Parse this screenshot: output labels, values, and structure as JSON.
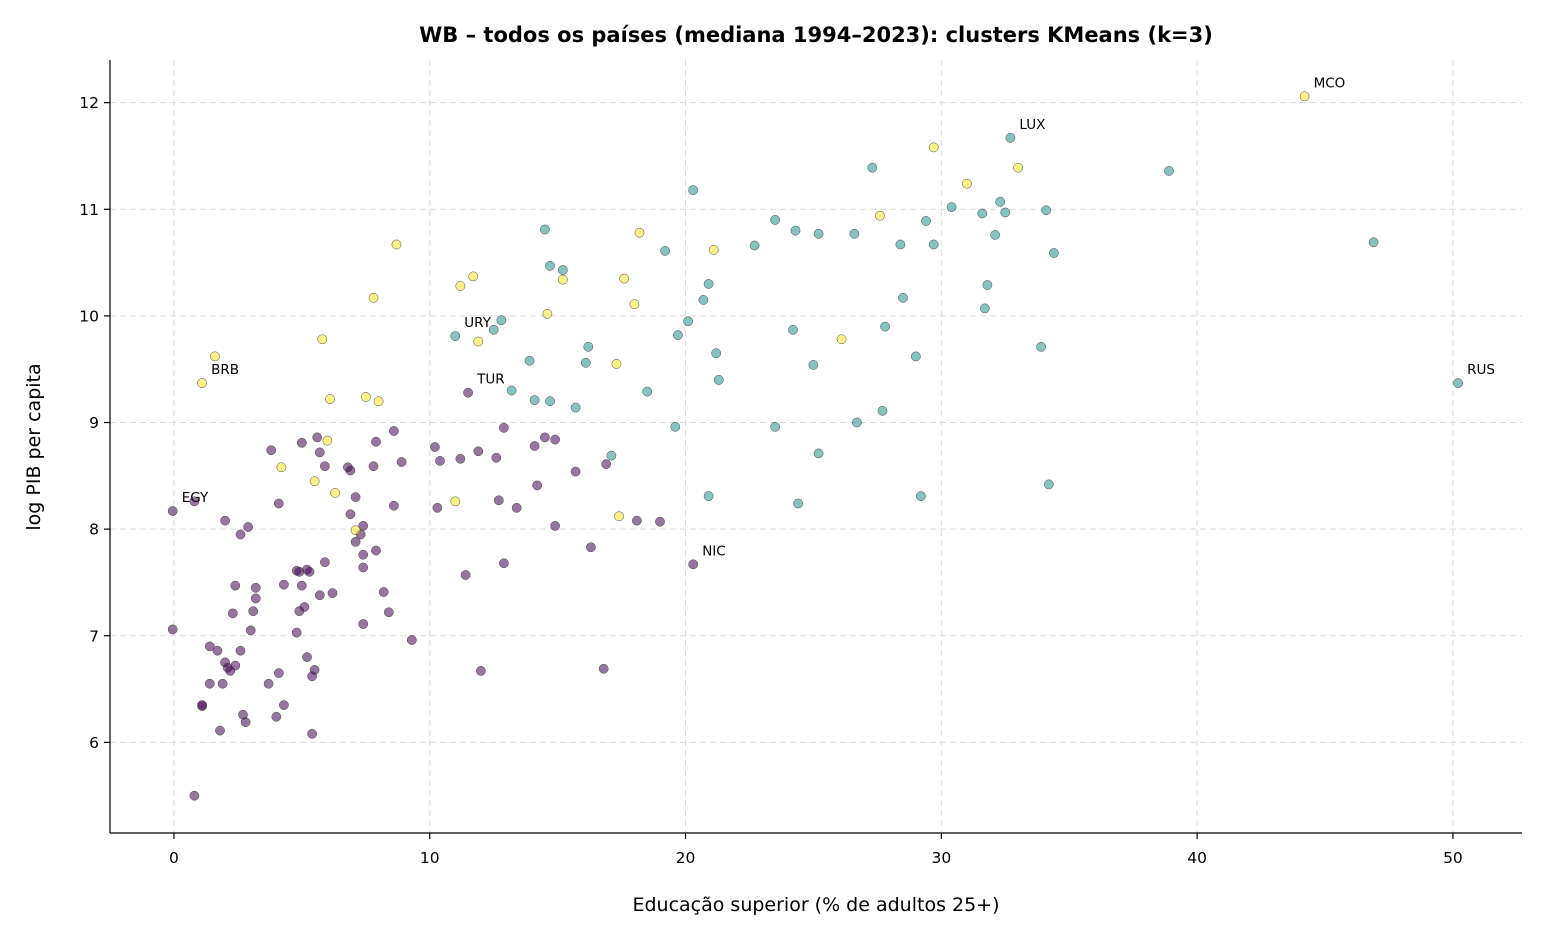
{
  "chart_data": {
    "type": "scatter",
    "title": "WB – todos os países (mediana 1994–2023): clusters KMeans (k=3)",
    "xlabel": "Educação superior (% de adultos 25+)",
    "ylabel": "log PIB per capita",
    "xlim": [
      -2.5,
      52.7
    ],
    "ylim": [
      5.15,
      12.4
    ],
    "xticks": [
      0,
      10,
      20,
      30,
      40,
      50
    ],
    "yticks": [
      6,
      7,
      8,
      9,
      10,
      11,
      12
    ],
    "grid": true,
    "colors": {
      "0": "#440154",
      "1": "#21918c",
      "2": "#fde725"
    },
    "points": [
      [
        -0.05,
        8.17,
        0
      ],
      [
        0.8,
        8.26,
        0
      ],
      [
        -0.05,
        7.06,
        0
      ],
      [
        0.8,
        5.5,
        0
      ],
      [
        1.1,
        6.34,
        0
      ],
      [
        1.1,
        6.35,
        0
      ],
      [
        1.4,
        6.55,
        0
      ],
      [
        1.4,
        6.9,
        0
      ],
      [
        1.7,
        6.86,
        0
      ],
      [
        1.8,
        6.11,
        0
      ],
      [
        1.9,
        6.55,
        0
      ],
      [
        2.0,
        6.75,
        0
      ],
      [
        2.0,
        8.08,
        0
      ],
      [
        2.1,
        6.7,
        0
      ],
      [
        2.2,
        6.67,
        0
      ],
      [
        2.3,
        7.21,
        0
      ],
      [
        2.4,
        7.47,
        0
      ],
      [
        2.4,
        6.72,
        0
      ],
      [
        2.6,
        6.86,
        0
      ],
      [
        2.6,
        7.95,
        0
      ],
      [
        2.7,
        6.26,
        0
      ],
      [
        2.8,
        6.19,
        0
      ],
      [
        2.9,
        8.02,
        0
      ],
      [
        3.0,
        7.05,
        0
      ],
      [
        3.1,
        7.23,
        0
      ],
      [
        3.2,
        7.35,
        0
      ],
      [
        3.2,
        7.45,
        0
      ],
      [
        3.7,
        6.55,
        0
      ],
      [
        3.8,
        8.74,
        0
      ],
      [
        4.0,
        6.24,
        0
      ],
      [
        4.1,
        8.24,
        0
      ],
      [
        4.1,
        6.65,
        0
      ],
      [
        4.3,
        7.48,
        0
      ],
      [
        4.3,
        6.35,
        0
      ],
      [
        4.8,
        7.61,
        0
      ],
      [
        4.8,
        7.03,
        0
      ],
      [
        4.9,
        7.6,
        0
      ],
      [
        4.9,
        7.23,
        0
      ],
      [
        5.0,
        8.81,
        0
      ],
      [
        5.0,
        7.47,
        0
      ],
      [
        5.1,
        7.27,
        0
      ],
      [
        5.2,
        7.62,
        0
      ],
      [
        5.2,
        6.8,
        0
      ],
      [
        5.3,
        7.6,
        0
      ],
      [
        5.4,
        6.62,
        0
      ],
      [
        5.4,
        6.08,
        0
      ],
      [
        5.5,
        6.68,
        0
      ],
      [
        5.6,
        8.86,
        0
      ],
      [
        5.7,
        8.72,
        0
      ],
      [
        5.7,
        7.38,
        0
      ],
      [
        5.9,
        8.59,
        0
      ],
      [
        5.9,
        7.69,
        0
      ],
      [
        6.2,
        7.4,
        0
      ],
      [
        6.8,
        8.58,
        0
      ],
      [
        6.9,
        8.55,
        0
      ],
      [
        6.9,
        8.14,
        0
      ],
      [
        7.1,
        7.88,
        0
      ],
      [
        7.1,
        8.3,
        0
      ],
      [
        7.3,
        7.95,
        0
      ],
      [
        7.4,
        8.03,
        0
      ],
      [
        7.4,
        7.76,
        0
      ],
      [
        7.4,
        7.64,
        0
      ],
      [
        7.4,
        7.11,
        0
      ],
      [
        7.8,
        8.59,
        0
      ],
      [
        7.9,
        8.82,
        0
      ],
      [
        7.9,
        7.8,
        0
      ],
      [
        8.2,
        7.41,
        0
      ],
      [
        8.4,
        7.22,
        0
      ],
      [
        8.6,
        8.92,
        0
      ],
      [
        8.6,
        8.22,
        0
      ],
      [
        8.9,
        8.63,
        0
      ],
      [
        9.3,
        6.96,
        0
      ],
      [
        10.2,
        8.77,
        0
      ],
      [
        10.3,
        8.2,
        0
      ],
      [
        10.4,
        8.64,
        0
      ],
      [
        11.2,
        8.66,
        0
      ],
      [
        11.4,
        7.57,
        0
      ],
      [
        11.5,
        9.28,
        0
      ],
      [
        11.9,
        8.73,
        0
      ],
      [
        12.0,
        6.67,
        0
      ],
      [
        12.6,
        8.67,
        0
      ],
      [
        12.7,
        8.27,
        0
      ],
      [
        12.9,
        8.95,
        0
      ],
      [
        12.9,
        7.68,
        0
      ],
      [
        13.4,
        8.2,
        0
      ],
      [
        14.1,
        8.78,
        0
      ],
      [
        14.2,
        8.41,
        0
      ],
      [
        14.5,
        8.86,
        0
      ],
      [
        14.9,
        8.84,
        0
      ],
      [
        14.9,
        8.03,
        0
      ],
      [
        15.7,
        8.54,
        0
      ],
      [
        16.3,
        7.83,
        0
      ],
      [
        16.8,
        6.69,
        0
      ],
      [
        16.9,
        8.61,
        0
      ],
      [
        18.1,
        8.08,
        0
      ],
      [
        19.0,
        8.07,
        0
      ],
      [
        20.3,
        7.67,
        0
      ],
      [
        11.0,
        9.81,
        1
      ],
      [
        12.5,
        9.87,
        1
      ],
      [
        12.8,
        9.96,
        1
      ],
      [
        13.2,
        9.3,
        1
      ],
      [
        13.9,
        9.58,
        1
      ],
      [
        14.1,
        9.21,
        1
      ],
      [
        14.5,
        10.81,
        1
      ],
      [
        14.7,
        10.47,
        1
      ],
      [
        14.7,
        9.2,
        1
      ],
      [
        15.2,
        10.43,
        1
      ],
      [
        15.7,
        9.14,
        1
      ],
      [
        16.1,
        9.56,
        1
      ],
      [
        16.2,
        9.71,
        1
      ],
      [
        17.1,
        8.69,
        1
      ],
      [
        18.5,
        9.29,
        1
      ],
      [
        19.2,
        10.61,
        1
      ],
      [
        19.6,
        8.96,
        1
      ],
      [
        19.7,
        9.82,
        1
      ],
      [
        20.1,
        9.95,
        1
      ],
      [
        20.3,
        11.18,
        1
      ],
      [
        20.7,
        10.15,
        1
      ],
      [
        20.9,
        10.3,
        1
      ],
      [
        20.9,
        8.31,
        1
      ],
      [
        21.2,
        9.65,
        1
      ],
      [
        21.3,
        9.4,
        1
      ],
      [
        22.7,
        10.66,
        1
      ],
      [
        23.5,
        10.9,
        1
      ],
      [
        23.5,
        8.96,
        1
      ],
      [
        24.2,
        9.87,
        1
      ],
      [
        24.3,
        10.8,
        1
      ],
      [
        24.4,
        8.24,
        1
      ],
      [
        25.0,
        9.54,
        1
      ],
      [
        25.2,
        10.77,
        1
      ],
      [
        25.2,
        8.71,
        1
      ],
      [
        26.6,
        10.77,
        1
      ],
      [
        26.7,
        9.0,
        1
      ],
      [
        27.3,
        11.39,
        1
      ],
      [
        27.7,
        9.11,
        1
      ],
      [
        27.8,
        9.9,
        1
      ],
      [
        28.4,
        10.67,
        1
      ],
      [
        28.5,
        10.17,
        1
      ],
      [
        29.0,
        9.62,
        1
      ],
      [
        29.2,
        8.31,
        1
      ],
      [
        29.4,
        10.89,
        1
      ],
      [
        29.7,
        10.67,
        1
      ],
      [
        30.4,
        11.02,
        1
      ],
      [
        31.6,
        10.96,
        1
      ],
      [
        31.7,
        10.07,
        1
      ],
      [
        31.8,
        10.29,
        1
      ],
      [
        32.1,
        10.76,
        1
      ],
      [
        32.3,
        11.07,
        1
      ],
      [
        32.5,
        10.97,
        1
      ],
      [
        32.7,
        11.67,
        1
      ],
      [
        33.9,
        9.71,
        1
      ],
      [
        34.1,
        10.99,
        1
      ],
      [
        34.2,
        8.42,
        1
      ],
      [
        34.4,
        10.59,
        1
      ],
      [
        38.9,
        11.36,
        1
      ],
      [
        46.9,
        10.69,
        1
      ],
      [
        50.2,
        9.37,
        1
      ],
      [
        1.1,
        9.37,
        2
      ],
      [
        1.6,
        9.62,
        2
      ],
      [
        4.2,
        8.58,
        2
      ],
      [
        5.5,
        8.45,
        2
      ],
      [
        5.8,
        9.78,
        2
      ],
      [
        6.0,
        8.83,
        2
      ],
      [
        6.1,
        9.22,
        2
      ],
      [
        6.3,
        8.34,
        2
      ],
      [
        7.1,
        7.99,
        2
      ],
      [
        7.5,
        9.24,
        2
      ],
      [
        7.8,
        10.17,
        2
      ],
      [
        8.0,
        9.2,
        2
      ],
      [
        8.7,
        10.67,
        2
      ],
      [
        11.0,
        8.26,
        2
      ],
      [
        11.2,
        10.28,
        2
      ],
      [
        11.7,
        10.37,
        2
      ],
      [
        11.9,
        9.76,
        2
      ],
      [
        14.6,
        10.02,
        2
      ],
      [
        15.2,
        10.34,
        2
      ],
      [
        17.3,
        9.55,
        2
      ],
      [
        17.4,
        8.12,
        2
      ],
      [
        17.6,
        10.35,
        2
      ],
      [
        18.0,
        10.11,
        2
      ],
      [
        18.2,
        10.78,
        2
      ],
      [
        21.1,
        10.62,
        2
      ],
      [
        26.1,
        9.78,
        2
      ],
      [
        27.6,
        10.94,
        2
      ],
      [
        29.7,
        11.58,
        2
      ],
      [
        31.0,
        11.24,
        2
      ],
      [
        33.0,
        11.39,
        2
      ],
      [
        44.2,
        12.06,
        2
      ]
    ],
    "annotations": [
      {
        "label": "MCO",
        "x": 44.2,
        "y": 12.06
      },
      {
        "label": "LUX",
        "x": 32.7,
        "y": 11.67
      },
      {
        "label": "URY",
        "x": 11.0,
        "y": 9.81
      },
      {
        "label": "TUR",
        "x": 11.5,
        "y": 9.28
      },
      {
        "label": "BRB",
        "x": 1.1,
        "y": 9.37
      },
      {
        "label": "EGY",
        "x": -0.05,
        "y": 8.17
      },
      {
        "label": "NIC",
        "x": 20.3,
        "y": 7.67
      },
      {
        "label": "RUS",
        "x": 50.2,
        "y": 9.37
      }
    ]
  }
}
